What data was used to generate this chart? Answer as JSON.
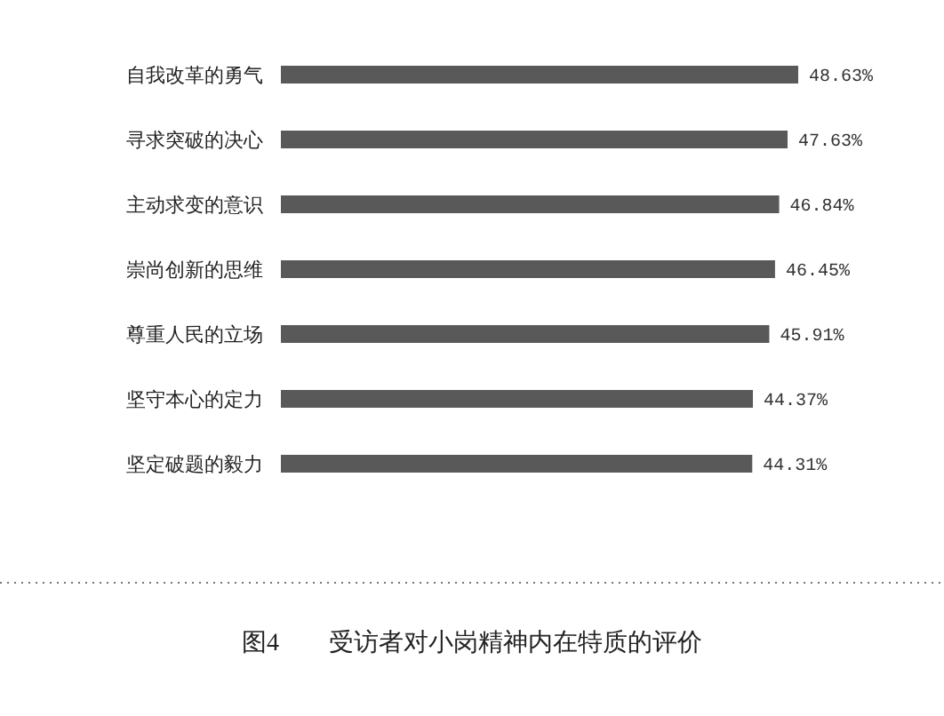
{
  "chart_data": {
    "type": "bar",
    "orientation": "horizontal",
    "title": "图4　　受访者对小岗精神内在特质的评价",
    "categories": [
      "自我改革的勇气",
      "寻求突破的决心",
      "主动求变的意识",
      "崇尚创新的思维",
      "尊重人民的立场",
      "坚守本心的定力",
      "坚定破题的毅力"
    ],
    "values": [
      48.63,
      47.63,
      46.84,
      46.45,
      45.91,
      44.37,
      44.31
    ],
    "value_labels": [
      "48.63%",
      "47.63%",
      "46.84%",
      "46.45%",
      "45.91%",
      "44.37%",
      "44.31%"
    ],
    "color": "#595959",
    "tick_labels": "y"
  }
}
